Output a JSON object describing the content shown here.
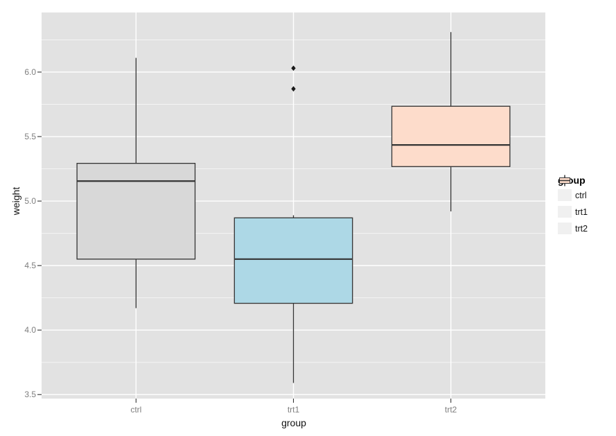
{
  "figure": {
    "background": "#ffffff",
    "panel_background": "#e2e2e2",
    "grid_major_color": "#ffffff",
    "grid_minor_color": "#ffffff",
    "box_stroke": "#333333",
    "outlier_color": "#1a1a1a",
    "tick_mark_color": "#333333",
    "axis_text_color": "#7e7e7e",
    "legend_key_background": "#f0f0f0"
  },
  "chart_data": {
    "type": "boxplot",
    "title": "",
    "xlabel": "group",
    "ylabel": "weight",
    "categories": [
      "ctrl",
      "trt1",
      "trt2"
    ],
    "y_ticks": [
      3.5,
      4.0,
      4.5,
      5.0,
      5.5,
      6.0
    ],
    "y_tick_labels": [
      "3.5",
      "4.0",
      "4.5",
      "5.0",
      "5.5",
      "6.0"
    ],
    "y_minor_ticks": [
      3.75,
      4.25,
      4.75,
      5.25,
      5.75,
      6.25
    ],
    "ylim": [
      3.469,
      6.462
    ],
    "grid": true,
    "legend": {
      "title": "group",
      "position": "right",
      "entries": [
        {
          "label": "ctrl",
          "fill": "#d8d8d8"
        },
        {
          "label": "trt1",
          "fill": "#add8e6"
        },
        {
          "label": "trt2",
          "fill": "#fddccb"
        }
      ]
    },
    "series": [
      {
        "name": "ctrl",
        "fill": "#d8d8d8",
        "lower_whisker": 4.17,
        "q1": 4.55,
        "median": 5.155,
        "q3": 5.2925,
        "upper_whisker": 6.11,
        "outliers": []
      },
      {
        "name": "trt1",
        "fill": "#add8e6",
        "lower_whisker": 3.59,
        "q1": 4.2075,
        "median": 4.55,
        "q3": 4.87,
        "upper_whisker": 4.89,
        "outliers": [
          5.87,
          6.03
        ]
      },
      {
        "name": "trt2",
        "fill": "#fddccb",
        "lower_whisker": 4.92,
        "q1": 5.2675,
        "median": 5.435,
        "q3": 5.735,
        "upper_whisker": 6.31,
        "outliers": []
      }
    ]
  }
}
